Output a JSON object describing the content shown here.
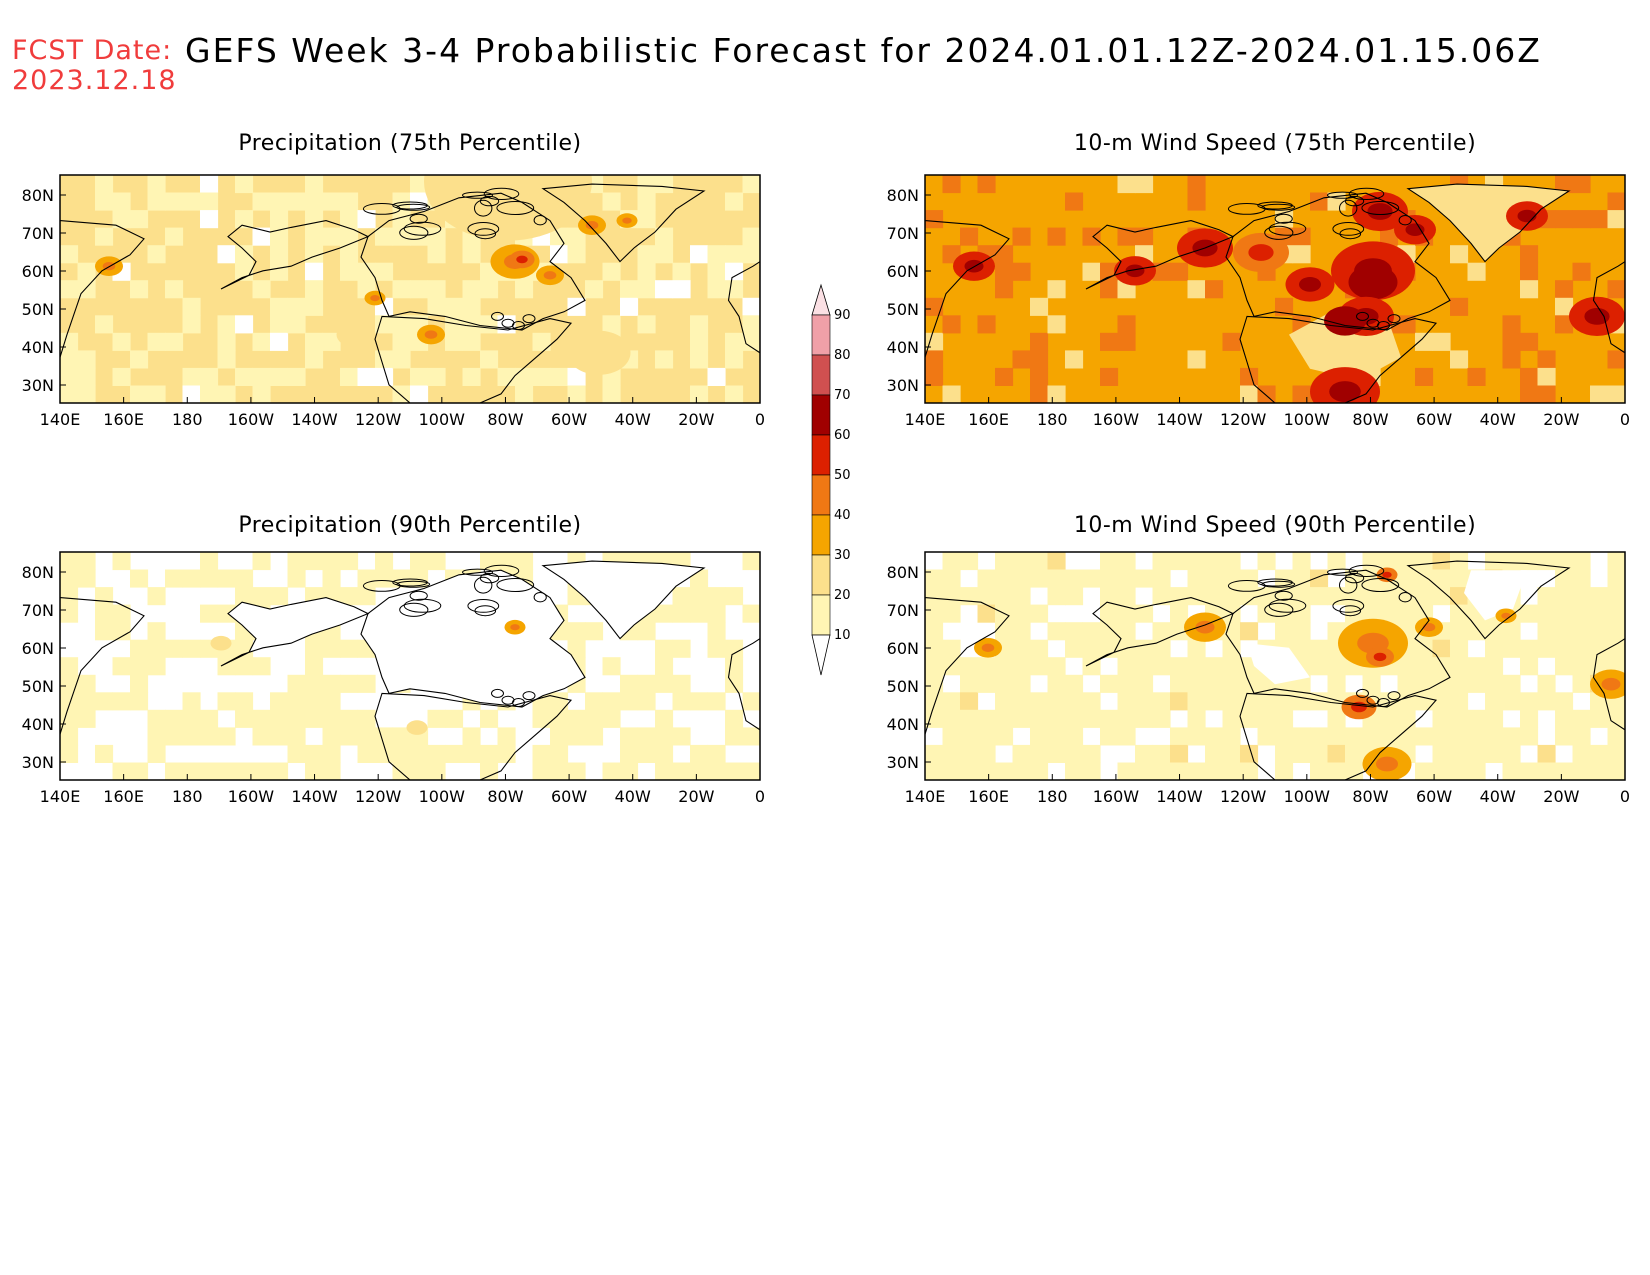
{
  "header": {
    "fcst_label": "FCST Date:",
    "fcst_date": "2023.12.18",
    "title": "GEFS Week 3-4 Probabilistic Forecast for 2024.01.01.12Z-2024.01.15.06Z"
  },
  "axes": {
    "lon_ticks": [
      "140E",
      "160E",
      "180",
      "160W",
      "140W",
      "120W",
      "100W",
      "80W",
      "60W",
      "40W",
      "20W",
      "0"
    ],
    "lat_ticks": [
      "80N",
      "70N",
      "60N",
      "50N",
      "40N",
      "30N"
    ]
  },
  "panels": [
    {
      "id": "precip-75",
      "title": "Precipitation (75th Percentile)"
    },
    {
      "id": "wind-75",
      "title": "10-m Wind Speed (75th Percentile)"
    },
    {
      "id": "precip-90",
      "title": "Precipitation (90th Percentile)"
    },
    {
      "id": "wind-90",
      "title": "10-m Wind Speed (90th Percentile)"
    }
  ],
  "colorbar": {
    "levels": [
      "10",
      "20",
      "30",
      "40",
      "50",
      "60",
      "70",
      "80",
      "90"
    ],
    "colors": [
      "#fff5b4",
      "#fce08c",
      "#f5a500",
      "#f07814",
      "#dc2000",
      "#a00000",
      "#d05050",
      "#f0a0a8",
      "#fbe0e4"
    ]
  }
}
